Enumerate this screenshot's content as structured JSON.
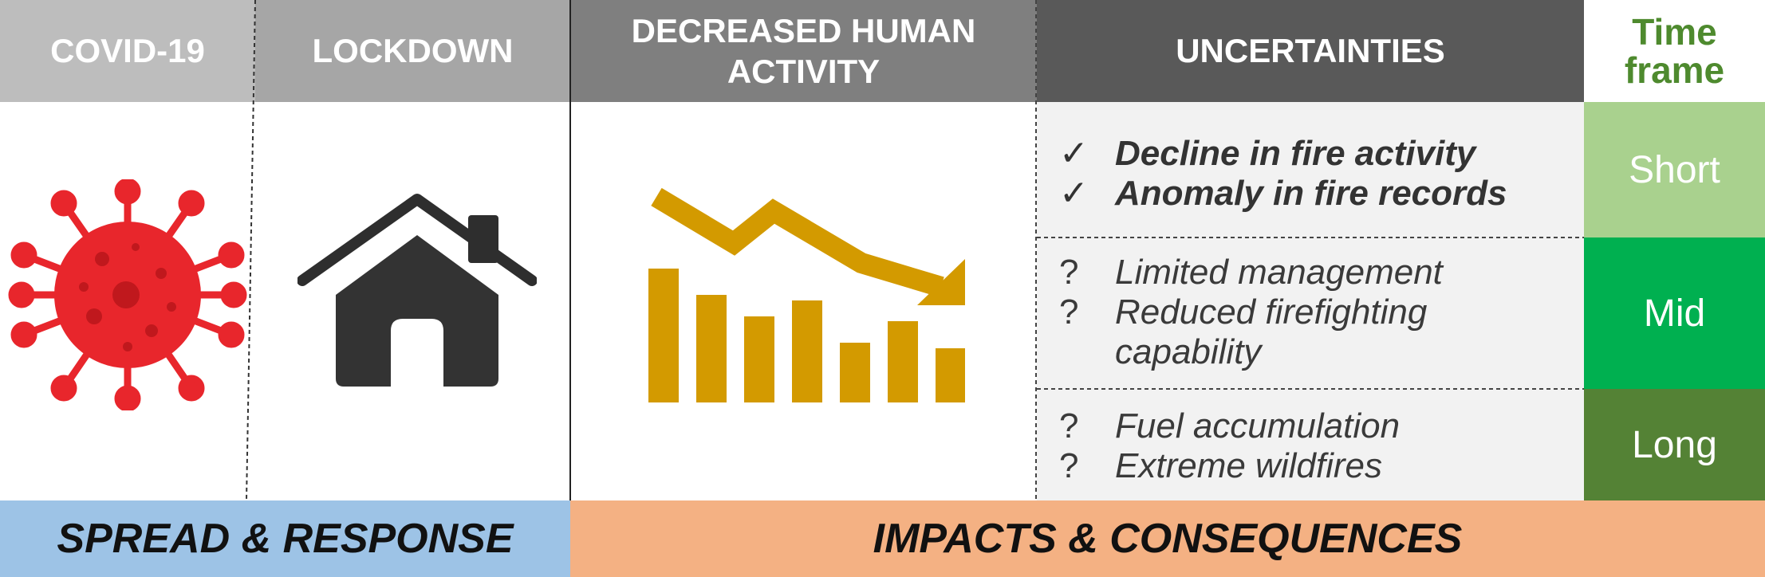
{
  "headers": {
    "covid": "COVID-19",
    "lockdown": "LOCKDOWN",
    "decreased_line1": "DECREASED HUMAN",
    "decreased_line2": "ACTIVITY",
    "uncertainties": "UNCERTAINTIES",
    "timeframe_line1": "Time",
    "timeframe_line2": "frame"
  },
  "rows": [
    {
      "items": [
        {
          "mark": "✓",
          "text": "Decline in fire activity"
        },
        {
          "mark": "✓",
          "text": "Anomaly in fire records"
        }
      ],
      "timeframe": "Short"
    },
    {
      "items": [
        {
          "mark": "?",
          "text": "Limited management"
        },
        {
          "mark": "?",
          "text": "Reduced firefighting capability"
        }
      ],
      "timeframe": "Mid"
    },
    {
      "items": [
        {
          "mark": "?",
          "text": "Fuel accumulation"
        },
        {
          "mark": "?",
          "text": "Extreme wildfires"
        }
      ],
      "timeframe": "Long"
    }
  ],
  "footer": {
    "left": "SPREAD & RESPONSE",
    "right": "IMPACTS & CONSEQUENCES"
  },
  "icons": {
    "covid": "virus-icon",
    "lockdown": "house-icon",
    "decreased": "declining-bar-chart-icon"
  },
  "colors": {
    "virus": "#e8262c",
    "house": "#333333",
    "chart": "#d39a00",
    "short": "#a9d18e",
    "mid": "#00b050",
    "long": "#548235",
    "spread": "#9dc3e6",
    "impacts": "#f4b183",
    "timeframe_text": "#4e8a2e"
  }
}
